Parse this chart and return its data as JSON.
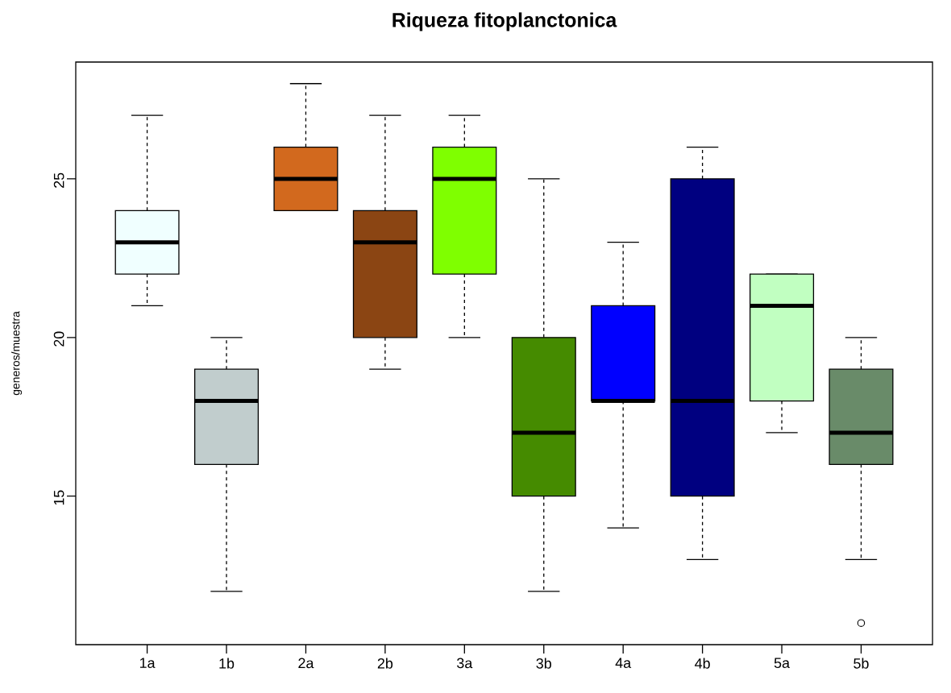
{
  "chart_data": {
    "type": "box",
    "title": "Riqueza fitoplanctonica",
    "ylabel": "generos/muestra",
    "categories": [
      "1a",
      "1b",
      "2a",
      "2b",
      "3a",
      "3b",
      "4a",
      "4b",
      "5a",
      "5b"
    ],
    "colors": [
      "#f0ffff",
      "#c1cdcd",
      "#d2691e",
      "#8b4513",
      "#7fff00",
      "#458b00",
      "#0000ff",
      "#000080",
      "#c1ffc1",
      "#698b69"
    ],
    "boxes": [
      {
        "low": 21,
        "q1": 22,
        "median": 23,
        "q3": 24,
        "high": 27
      },
      {
        "low": 12,
        "q1": 16,
        "median": 18,
        "q3": 19,
        "high": 20
      },
      {
        "low": 24,
        "q1": 24,
        "median": 25,
        "q3": 26,
        "high": 28
      },
      {
        "low": 19,
        "q1": 20,
        "median": 23,
        "q3": 24,
        "high": 27
      },
      {
        "low": 20,
        "q1": 22,
        "median": 25,
        "q3": 26,
        "high": 27
      },
      {
        "low": 12,
        "q1": 15,
        "median": 17,
        "q3": 20,
        "high": 25
      },
      {
        "low": 14,
        "q1": 18,
        "median": 18,
        "q3": 21,
        "high": 23
      },
      {
        "low": 13,
        "q1": 15,
        "median": 18,
        "q3": 25,
        "high": 26
      },
      {
        "low": 17,
        "q1": 18,
        "median": 21,
        "q3": 22,
        "high": 22
      },
      {
        "low": 13,
        "q1": 16,
        "median": 17,
        "q3": 19,
        "high": 20,
        "outliers": [
          11
        ]
      }
    ],
    "ylim": [
      10.32,
      28.68
    ],
    "yticks": [
      15,
      20,
      25
    ]
  }
}
